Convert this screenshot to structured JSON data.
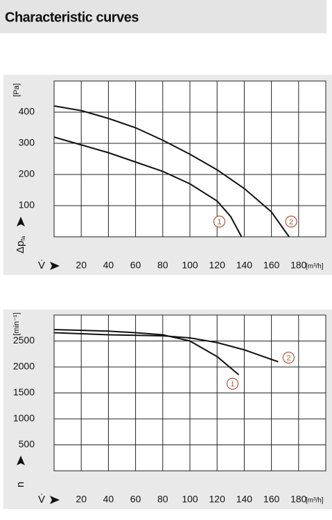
{
  "header": {
    "title": "Characteristic curves"
  },
  "chart_data": [
    {
      "type": "line",
      "x_label": "V̇",
      "x_unit": "[m³/h]",
      "y_label": "Δp",
      "y_label_sub": "fa",
      "y_unit": "[Pa]",
      "xlim": [
        0,
        200
      ],
      "xticks": [
        20,
        40,
        60,
        80,
        100,
        120,
        140,
        160,
        180
      ],
      "ylim": [
        0,
        500
      ],
      "yticks": [
        100,
        200,
        300,
        400
      ],
      "grid": true,
      "series": [
        {
          "name": "1",
          "color": "#111111",
          "x": [
            0,
            20,
            40,
            60,
            80,
            100,
            120,
            130,
            138
          ],
          "values": [
            320,
            295,
            270,
            240,
            210,
            170,
            115,
            65,
            0
          ]
        },
        {
          "name": "2",
          "color": "#111111",
          "x": [
            0,
            20,
            40,
            60,
            80,
            100,
            120,
            140,
            160,
            173
          ],
          "values": [
            420,
            405,
            380,
            350,
            310,
            265,
            215,
            155,
            80,
            0
          ]
        }
      ]
    },
    {
      "type": "line",
      "x_label": "V̇",
      "x_unit": "[m³/h]",
      "y_label": "n",
      "y_unit": "[min⁻¹]",
      "xlim": [
        0,
        200
      ],
      "xticks": [
        20,
        40,
        60,
        80,
        100,
        120,
        140,
        160,
        180
      ],
      "ylim": [
        0,
        3000
      ],
      "yticks": [
        500,
        1000,
        1500,
        2000,
        2500
      ],
      "grid": true,
      "series": [
        {
          "name": "1",
          "color": "#111111",
          "x": [
            0,
            40,
            60,
            80,
            100,
            120,
            136
          ],
          "values": [
            2720,
            2690,
            2660,
            2620,
            2500,
            2200,
            1850
          ]
        },
        {
          "name": "2",
          "color": "#111111",
          "x": [
            0,
            40,
            80,
            100,
            120,
            140,
            165
          ],
          "values": [
            2660,
            2620,
            2600,
            2560,
            2470,
            2330,
            2100
          ]
        }
      ]
    }
  ]
}
